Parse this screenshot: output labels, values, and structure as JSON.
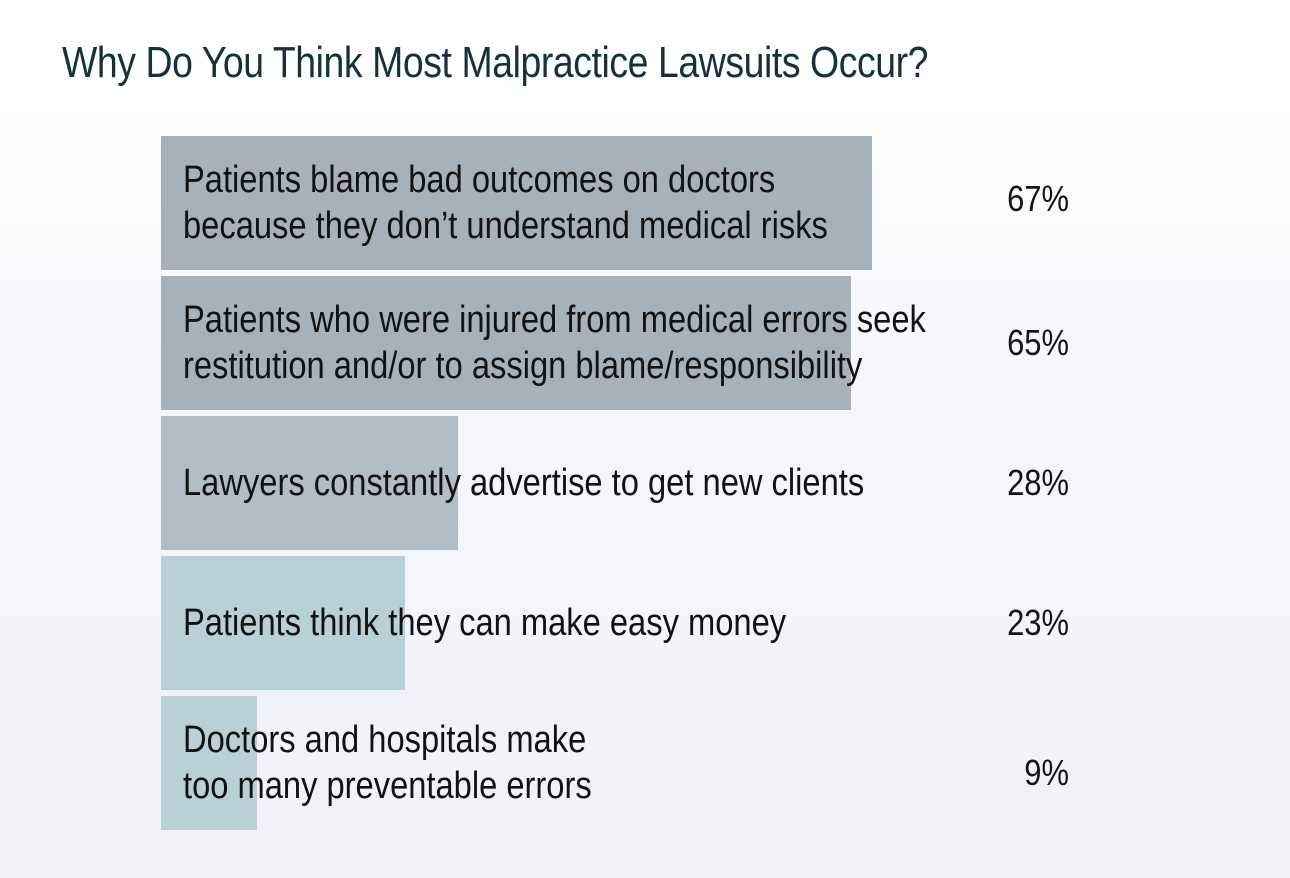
{
  "title": "Why Do You Think Most Malpractice Lawsuits Occur?",
  "chart_data": {
    "type": "bar",
    "orientation": "horizontal",
    "title": "Why Do You Think Most Malpractice Lawsuits Occur?",
    "categories": [
      "Patients blame bad outcomes on doctors\nbecause they don’t understand medical risks",
      "Patients who were injured from medical errors seek\nrestitution and/or to assign blame/responsibility",
      "Lawyers constantly advertise to get new clients",
      "Patients think they can make easy money",
      "Doctors and hospitals make\ntoo many preventable errors"
    ],
    "values": [
      67,
      65,
      28,
      23,
      9
    ],
    "value_labels": [
      "67%",
      "65%",
      "28%",
      "23%",
      "9%"
    ],
    "unit": "%",
    "xlim": [
      0,
      100
    ],
    "grid": false,
    "bar_colors": [
      "#a7b1ba",
      "#a7b1ba",
      "#b1bec6",
      "#b9d0d9",
      "#b9d0d9"
    ]
  }
}
